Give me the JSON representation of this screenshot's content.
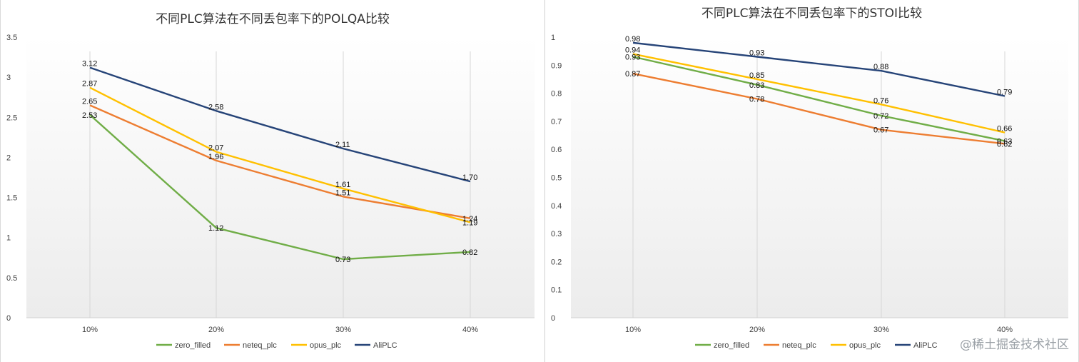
{
  "watermark": "@稀土掘金技术社区",
  "chart_data": [
    {
      "type": "line",
      "title": "不同PLC算法在不同丢包率下的POLQA比较",
      "categories": [
        "10%",
        "20%",
        "30%",
        "40%"
      ],
      "ylim": [
        0,
        3.5
      ],
      "yticks": [
        "0",
        "0.5",
        "1",
        "1.5",
        "2",
        "2.5",
        "3",
        "3.5"
      ],
      "ytick_values": [
        0,
        0.5,
        1,
        1.5,
        2,
        2.5,
        3,
        3.5
      ],
      "grid": "vertical",
      "legend_position": "bottom",
      "series": [
        {
          "name": "zero_filled",
          "color": "#70AD47",
          "values": [
            2.53,
            1.12,
            0.73,
            0.82
          ],
          "labels": [
            "2.53",
            "1.12",
            "0.73",
            "0.82"
          ]
        },
        {
          "name": "neteq_plc",
          "color": "#ED7D31",
          "values": [
            2.65,
            1.96,
            1.51,
            1.24
          ],
          "labels": [
            "2.65",
            "1.96",
            "1.51",
            "1.24"
          ]
        },
        {
          "name": "opus_plc",
          "color": "#FFC000",
          "values": [
            2.87,
            2.07,
            1.61,
            1.19
          ],
          "labels": [
            "2.87",
            "2.07",
            "1.61",
            "1.19"
          ]
        },
        {
          "name": "AliPLC",
          "color": "#264478",
          "values": [
            3.12,
            2.58,
            2.11,
            1.7
          ],
          "labels": [
            "3.12",
            "2.58",
            "2.11",
            "1.70"
          ]
        }
      ]
    },
    {
      "type": "line",
      "title": "不同PLC算法在不同丢包率下的STOI比较",
      "categories": [
        "10%",
        "20%",
        "30%",
        "40%"
      ],
      "ylim": [
        0,
        1
      ],
      "yticks": [
        "0",
        "0.1",
        "0.2",
        "0.3",
        "0.4",
        "0.5",
        "0.6",
        "0.7",
        "0.8",
        "0.9",
        "1"
      ],
      "ytick_values": [
        0,
        0.1,
        0.2,
        0.3,
        0.4,
        0.5,
        0.6,
        0.7,
        0.8,
        0.9,
        1
      ],
      "grid": "vertical",
      "legend_position": "bottom",
      "series": [
        {
          "name": "zero_filled",
          "color": "#70AD47",
          "values": [
            0.93,
            0.83,
            0.72,
            0.63
          ],
          "labels": [
            "0.93",
            "0.83",
            "0.72",
            "0.63"
          ]
        },
        {
          "name": "neteq_plc",
          "color": "#ED7D31",
          "values": [
            0.87,
            0.78,
            0.67,
            0.62
          ],
          "labels": [
            "0.87",
            "0.78",
            "0.67",
            "0.62"
          ]
        },
        {
          "name": "opus_plc",
          "color": "#FFC000",
          "values": [
            0.94,
            0.85,
            0.76,
            0.66
          ],
          "labels": [
            "0.94",
            "0.85",
            "0.76",
            "0.66"
          ]
        },
        {
          "name": "AliPLC",
          "color": "#264478",
          "values": [
            0.98,
            0.93,
            0.88,
            0.79
          ],
          "labels": [
            "0.98",
            "0.93",
            "0.88",
            "0.79"
          ]
        }
      ]
    }
  ]
}
